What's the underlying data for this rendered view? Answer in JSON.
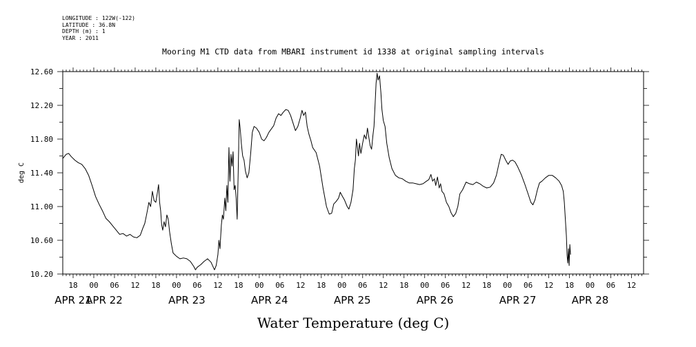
{
  "metadata": [
    {
      "key": "LONGITUDE",
      "value": "122W(-122)"
    },
    {
      "key": "LATITUDE",
      "value": "36.8N"
    },
    {
      "key": "DEPTH (m)",
      "value": "1"
    },
    {
      "key": "YEAR",
      "value": "2011"
    }
  ],
  "chart_data": {
    "type": "line",
    "title": "Mooring M1 CTD data from MBARI instrument id 1338 at original sampling intervals",
    "xlabel": "Water Temperature (deg C)",
    "ylabel": "deg C",
    "ylim": [
      10.2,
      12.6
    ],
    "yticks": [
      10.2,
      10.6,
      11.0,
      11.4,
      11.8,
      12.2,
      12.6
    ],
    "ytick_labels": [
      "10.20",
      "10.60",
      "11.00",
      "11.40",
      "11.80",
      "12.20",
      "12.60"
    ],
    "x_unit": "hours since APR 21 00:00, 2011",
    "xlim": [
      -9,
      159.5
    ],
    "x_hour_labels": [
      {
        "x": -6,
        "label": "18"
      },
      {
        "x": 0,
        "label": "00"
      },
      {
        "x": 6,
        "label": "06"
      },
      {
        "x": 12,
        "label": "12"
      },
      {
        "x": 18,
        "label": "18"
      },
      {
        "x": 24,
        "label": "00"
      },
      {
        "x": 30,
        "label": "06"
      },
      {
        "x": 36,
        "label": "12"
      },
      {
        "x": 42,
        "label": "18"
      },
      {
        "x": 48,
        "label": "00"
      },
      {
        "x": 54,
        "label": "06"
      },
      {
        "x": 60,
        "label": "12"
      },
      {
        "x": 66,
        "label": "18"
      },
      {
        "x": 72,
        "label": "00"
      },
      {
        "x": 78,
        "label": "06"
      },
      {
        "x": 84,
        "label": "12"
      },
      {
        "x": 90,
        "label": "18"
      },
      {
        "x": 96,
        "label": "00"
      },
      {
        "x": 102,
        "label": "06"
      },
      {
        "x": 108,
        "label": "12"
      },
      {
        "x": 114,
        "label": "18"
      },
      {
        "x": 120,
        "label": "00"
      },
      {
        "x": 126,
        "label": "06"
      },
      {
        "x": 132,
        "label": "12"
      },
      {
        "x": 138,
        "label": "18"
      },
      {
        "x": 144,
        "label": "00"
      },
      {
        "x": 150,
        "label": "06"
      },
      {
        "x": 156,
        "label": "12"
      }
    ],
    "x_day_labels": [
      {
        "x": -6,
        "label": "APR 21"
      },
      {
        "x": 3,
        "label": "APR 22"
      },
      {
        "x": 27,
        "label": "APR 23"
      },
      {
        "x": 51,
        "label": "APR 24"
      },
      {
        "x": 75,
        "label": "APR 25"
      },
      {
        "x": 99,
        "label": "APR 26"
      },
      {
        "x": 123,
        "label": "APR 27"
      },
      {
        "x": 144,
        "label": "APR 28"
      }
    ],
    "series": [
      {
        "color": "#000000",
        "points": [
          [
            -9,
            11.57
          ],
          [
            -8,
            11.62
          ],
          [
            -7.3,
            11.63
          ],
          [
            -6.5,
            11.59
          ],
          [
            -5.5,
            11.55
          ],
          [
            -4.5,
            11.52
          ],
          [
            -3.5,
            11.5
          ],
          [
            -2.5,
            11.45
          ],
          [
            -1.5,
            11.37
          ],
          [
            -0.5,
            11.25
          ],
          [
            0.5,
            11.12
          ],
          [
            1.5,
            11.03
          ],
          [
            2.5,
            10.95
          ],
          [
            3.5,
            10.86
          ],
          [
            4.5,
            10.82
          ],
          [
            5.5,
            10.77
          ],
          [
            6.5,
            10.72
          ],
          [
            7.5,
            10.67
          ],
          [
            8.5,
            10.68
          ],
          [
            9.5,
            10.65
          ],
          [
            10.5,
            10.67
          ],
          [
            11.5,
            10.64
          ],
          [
            12.5,
            10.63
          ],
          [
            13.5,
            10.66
          ],
          [
            14.2,
            10.74
          ],
          [
            14.8,
            10.8
          ],
          [
            15.4,
            10.92
          ],
          [
            16,
            11.05
          ],
          [
            16.5,
            11.0
          ],
          [
            17,
            11.18
          ],
          [
            17.5,
            11.07
          ],
          [
            18,
            11.05
          ],
          [
            18.4,
            11.15
          ],
          [
            18.8,
            11.26
          ],
          [
            19.1,
            11.05
          ],
          [
            19.4,
            10.95
          ],
          [
            19.7,
            10.78
          ],
          [
            20,
            10.72
          ],
          [
            20.4,
            10.82
          ],
          [
            20.8,
            10.76
          ],
          [
            21.2,
            10.9
          ],
          [
            21.6,
            10.85
          ],
          [
            22,
            10.7
          ],
          [
            22.5,
            10.56
          ],
          [
            23,
            10.45
          ],
          [
            24,
            10.41
          ],
          [
            25,
            10.38
          ],
          [
            26,
            10.39
          ],
          [
            27,
            10.38
          ],
          [
            28,
            10.35
          ],
          [
            29,
            10.29
          ],
          [
            29.5,
            10.25
          ],
          [
            30,
            10.28
          ],
          [
            31,
            10.31
          ],
          [
            32,
            10.35
          ],
          [
            33,
            10.38
          ],
          [
            34,
            10.34
          ],
          [
            35,
            10.25
          ],
          [
            35.5,
            10.3
          ],
          [
            36,
            10.43
          ],
          [
            36.3,
            10.6
          ],
          [
            36.6,
            10.5
          ],
          [
            37,
            10.78
          ],
          [
            37.3,
            10.9
          ],
          [
            37.6,
            10.85
          ],
          [
            38,
            11.1
          ],
          [
            38.3,
            10.95
          ],
          [
            38.6,
            11.25
          ],
          [
            38.9,
            11.05
          ],
          [
            39.2,
            11.7
          ],
          [
            39.5,
            11.3
          ],
          [
            39.8,
            11.62
          ],
          [
            40.1,
            11.48
          ],
          [
            40.4,
            11.65
          ],
          [
            40.7,
            11.2
          ],
          [
            41,
            11.25
          ],
          [
            41.3,
            11.1
          ],
          [
            41.6,
            10.85
          ],
          [
            41.9,
            11.4
          ],
          [
            42.2,
            12.03
          ],
          [
            42.5,
            11.92
          ],
          [
            42.8,
            11.75
          ],
          [
            43.2,
            11.6
          ],
          [
            43.6,
            11.55
          ],
          [
            44,
            11.42
          ],
          [
            44.5,
            11.34
          ],
          [
            45,
            11.4
          ],
          [
            45.5,
            11.62
          ],
          [
            46,
            11.88
          ],
          [
            46.5,
            11.95
          ],
          [
            47.2,
            11.93
          ],
          [
            48,
            11.88
          ],
          [
            48.7,
            11.8
          ],
          [
            49.4,
            11.78
          ],
          [
            50.1,
            11.82
          ],
          [
            50.8,
            11.88
          ],
          [
            51.5,
            11.92
          ],
          [
            52.2,
            11.96
          ],
          [
            52.9,
            12.05
          ],
          [
            53.6,
            12.1
          ],
          [
            54.3,
            12.08
          ],
          [
            55,
            12.12
          ],
          [
            55.7,
            12.15
          ],
          [
            56.4,
            12.14
          ],
          [
            57.1,
            12.08
          ],
          [
            57.8,
            11.99
          ],
          [
            58.5,
            11.9
          ],
          [
            59.2,
            11.95
          ],
          [
            59.9,
            12.05
          ],
          [
            60.4,
            12.14
          ],
          [
            60.9,
            12.08
          ],
          [
            61.4,
            12.12
          ],
          [
            61.9,
            11.95
          ],
          [
            62.4,
            11.86
          ],
          [
            63,
            11.78
          ],
          [
            63.5,
            11.7
          ],
          [
            64.5,
            11.64
          ],
          [
            65.5,
            11.48
          ],
          [
            66.5,
            11.22
          ],
          [
            67.5,
            11.0
          ],
          [
            68.3,
            10.91
          ],
          [
            69,
            10.92
          ],
          [
            69.6,
            11.03
          ],
          [
            70.3,
            11.06
          ],
          [
            71,
            11.1
          ],
          [
            71.5,
            11.17
          ],
          [
            72,
            11.13
          ],
          [
            72.7,
            11.08
          ],
          [
            73.5,
            11.0
          ],
          [
            74,
            10.97
          ],
          [
            74.6,
            11.05
          ],
          [
            75.2,
            11.2
          ],
          [
            75.6,
            11.45
          ],
          [
            75.9,
            11.55
          ],
          [
            76.2,
            11.8
          ],
          [
            76.5,
            11.7
          ],
          [
            76.8,
            11.6
          ],
          [
            77.1,
            11.75
          ],
          [
            77.5,
            11.63
          ],
          [
            78,
            11.75
          ],
          [
            78.5,
            11.85
          ],
          [
            79,
            11.8
          ],
          [
            79.4,
            11.93
          ],
          [
            79.8,
            11.82
          ],
          [
            80.2,
            11.72
          ],
          [
            80.6,
            11.68
          ],
          [
            81,
            11.85
          ],
          [
            81.3,
            11.95
          ],
          [
            81.6,
            12.2
          ],
          [
            81.9,
            12.46
          ],
          [
            82.2,
            12.58
          ],
          [
            82.5,
            12.5
          ],
          [
            82.9,
            12.55
          ],
          [
            83.3,
            12.35
          ],
          [
            83.6,
            12.15
          ],
          [
            84,
            12.02
          ],
          [
            84.5,
            11.95
          ],
          [
            85,
            11.75
          ],
          [
            85.7,
            11.58
          ],
          [
            86.5,
            11.45
          ],
          [
            87.5,
            11.37
          ],
          [
            88.5,
            11.34
          ],
          [
            89.5,
            11.33
          ],
          [
            90.5,
            11.3
          ],
          [
            91.5,
            11.28
          ],
          [
            92.5,
            11.28
          ],
          [
            93.5,
            11.27
          ],
          [
            94.5,
            11.26
          ],
          [
            95.5,
            11.27
          ],
          [
            96.5,
            11.3
          ],
          [
            97.2,
            11.32
          ],
          [
            97.8,
            11.38
          ],
          [
            98.3,
            11.3
          ],
          [
            98.8,
            11.33
          ],
          [
            99.2,
            11.25
          ],
          [
            99.7,
            11.35
          ],
          [
            100.2,
            11.22
          ],
          [
            100.6,
            11.27
          ],
          [
            101,
            11.18
          ],
          [
            101.6,
            11.15
          ],
          [
            102.3,
            11.05
          ],
          [
            103,
            11.0
          ],
          [
            103.6,
            10.93
          ],
          [
            104.3,
            10.88
          ],
          [
            105,
            10.92
          ],
          [
            105.6,
            11.0
          ],
          [
            106.2,
            11.15
          ],
          [
            107,
            11.2
          ],
          [
            108,
            11.29
          ],
          [
            109,
            11.27
          ],
          [
            110,
            11.26
          ],
          [
            111,
            11.29
          ],
          [
            112,
            11.27
          ],
          [
            113,
            11.24
          ],
          [
            114,
            11.22
          ],
          [
            115,
            11.23
          ],
          [
            116,
            11.28
          ],
          [
            116.8,
            11.37
          ],
          [
            117.5,
            11.5
          ],
          [
            118.2,
            11.62
          ],
          [
            118.8,
            11.61
          ],
          [
            119.5,
            11.55
          ],
          [
            120.2,
            11.5
          ],
          [
            120.8,
            11.54
          ],
          [
            121.5,
            11.55
          ],
          [
            122.2,
            11.53
          ],
          [
            123,
            11.47
          ],
          [
            124,
            11.38
          ],
          [
            125,
            11.27
          ],
          [
            126,
            11.15
          ],
          [
            126.8,
            11.05
          ],
          [
            127.4,
            11.02
          ],
          [
            128,
            11.08
          ],
          [
            128.7,
            11.2
          ],
          [
            129.3,
            11.28
          ],
          [
            130,
            11.3
          ],
          [
            131,
            11.34
          ],
          [
            132,
            11.37
          ],
          [
            133,
            11.37
          ],
          [
            134,
            11.34
          ],
          [
            135,
            11.3
          ],
          [
            135.7,
            11.25
          ],
          [
            136.2,
            11.18
          ],
          [
            136.5,
            11.05
          ],
          [
            136.8,
            10.85
          ],
          [
            137.1,
            10.65
          ],
          [
            137.3,
            10.42
          ],
          [
            137.5,
            10.33
          ],
          [
            137.7,
            10.5
          ],
          [
            137.9,
            10.3
          ],
          [
            138.1,
            10.55
          ],
          [
            138.3,
            10.43
          ]
        ]
      }
    ]
  }
}
